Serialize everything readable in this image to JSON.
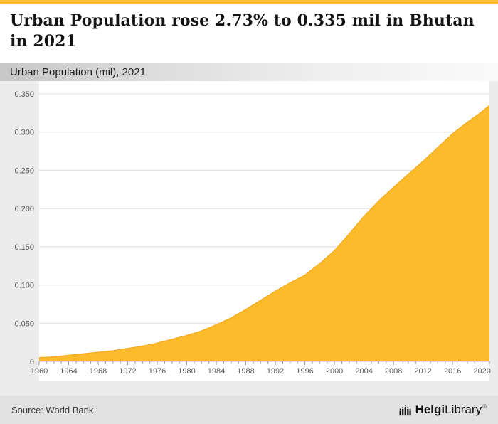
{
  "accent_color": "#f9bb2d",
  "header": {
    "title": "Urban Population rose 2.73% to 0.335 mil in Bhutan in 2021",
    "subtitle": "Urban Population (mil), 2021"
  },
  "footer": {
    "source": "Source: World Bank",
    "logo_bold": "Helgi",
    "logo_regular": "Library",
    "logo_mark": "®"
  },
  "chart_data": {
    "type": "area",
    "title": "Urban Population rose 2.73% to 0.335 mil in Bhutan in 2021",
    "subtitle": "Urban Population (mil), 2021",
    "x": [
      1960,
      1962,
      1964,
      1966,
      1968,
      1970,
      1972,
      1974,
      1976,
      1978,
      1980,
      1982,
      1984,
      1986,
      1988,
      1990,
      1992,
      1994,
      1996,
      1998,
      2000,
      2002,
      2004,
      2006,
      2008,
      2010,
      2012,
      2014,
      2016,
      2018,
      2020,
      2021
    ],
    "values": [
      0.005,
      0.006,
      0.008,
      0.01,
      0.012,
      0.014,
      0.017,
      0.02,
      0.024,
      0.029,
      0.034,
      0.04,
      0.048,
      0.057,
      0.068,
      0.08,
      0.092,
      0.103,
      0.113,
      0.128,
      0.145,
      0.167,
      0.19,
      0.21,
      0.228,
      0.245,
      0.262,
      0.28,
      0.298,
      0.313,
      0.327,
      0.335
    ],
    "xlim": [
      1960,
      2021
    ],
    "ylim": [
      0,
      0.35
    ],
    "yticks": [
      0,
      0.05,
      0.1,
      0.15,
      0.2,
      0.25,
      0.3,
      0.35
    ],
    "ytick_labels": [
      "0",
      "0.050",
      "0.100",
      "0.150",
      "0.200",
      "0.250",
      "0.300",
      "0.350"
    ],
    "xticks": [
      1960,
      1964,
      1968,
      1972,
      1976,
      1980,
      1984,
      1988,
      1992,
      1996,
      2000,
      2004,
      2008,
      2012,
      2016,
      2020
    ],
    "xtick_labels": [
      "1960",
      "1964",
      "1968",
      "1972",
      "1976",
      "1980",
      "1984",
      "1988",
      "1992",
      "1996",
      "2000",
      "2004",
      "2008",
      "2012",
      "2016",
      "2020"
    ],
    "area_color": "#fbbb2a",
    "edge_color": "#f5a81f",
    "grid": true,
    "plot_bg": "#ffffff",
    "grid_color": "#dddddd",
    "axis_color": "#bdbdbd",
    "tick_label_color": "#5a5a5a"
  }
}
